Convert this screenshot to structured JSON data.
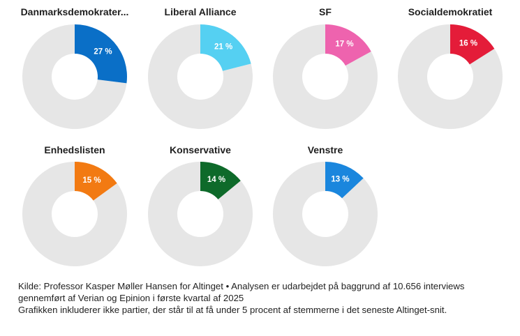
{
  "chart_data": {
    "type": "pie",
    "subtype": "donut",
    "charts": [
      {
        "title": "Danmarksdemokrater...",
        "value": 27,
        "label": "27 %",
        "color": "#0a6fc7"
      },
      {
        "title": "Liberal Alliance",
        "value": 21,
        "label": "21 %",
        "color": "#55d0f2"
      },
      {
        "title": "SF",
        "value": 17,
        "label": "17 %",
        "color": "#ee63ae"
      },
      {
        "title": "Socialdemokratiet",
        "value": 16,
        "label": "16 %",
        "color": "#e41c39"
      },
      {
        "title": "Enhedslisten",
        "value": 15,
        "label": "15 %",
        "color": "#f27a12"
      },
      {
        "title": "Konservative",
        "value": 14,
        "label": "14 %",
        "color": "#0e6a2a"
      },
      {
        "title": "Venstre",
        "value": 13,
        "label": "13 %",
        "color": "#1a86dd"
      }
    ],
    "remainder_color": "#e6e6e6"
  },
  "footnote": {
    "source": "Kilde: Professor Kasper Møller Hansen for Altinget • Analysen er udarbejdet på baggrund af 10.656 interviews gennemført af Verian og Epinion i første kvartal af 2025",
    "note": "Grafikken inkluderer ikke partier, der står til at få under 5 procent af stemmerne i det seneste Altinget-snit."
  }
}
